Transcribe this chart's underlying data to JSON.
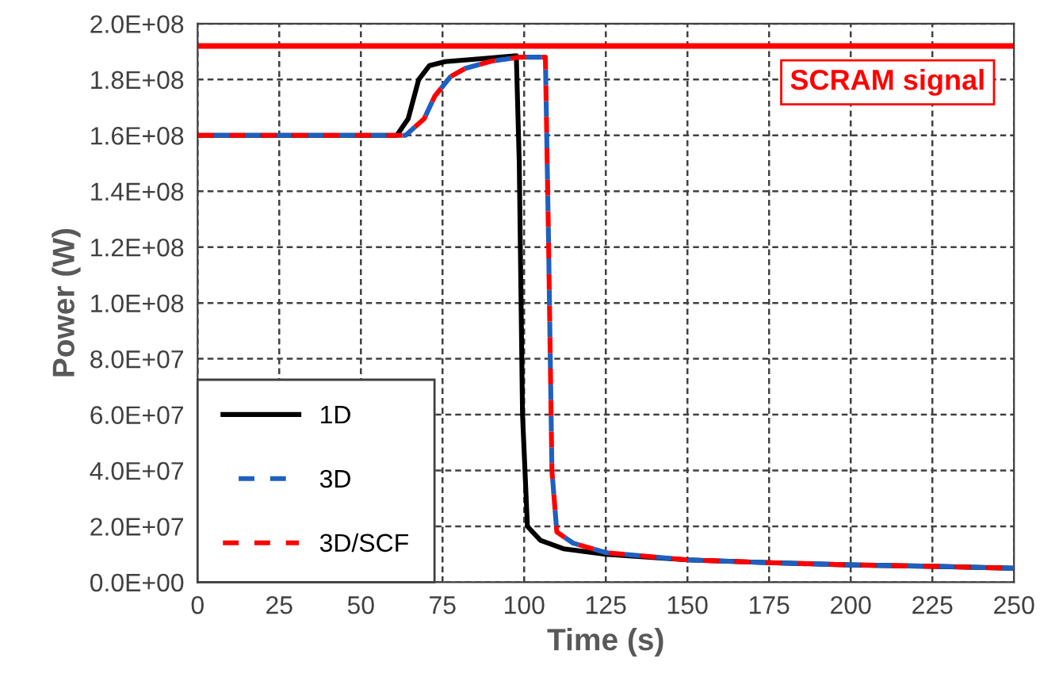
{
  "chart_data": {
    "type": "line",
    "xlabel": "Time (s)",
    "ylabel": "Power (W)",
    "xlim": [
      0,
      250
    ],
    "xticks": [
      0,
      25,
      50,
      75,
      100,
      125,
      150,
      175,
      200,
      225,
      250
    ],
    "ylim": [
      0,
      200000000
    ],
    "yticks": [
      {
        "value": 0,
        "label": "0.0E+00"
      },
      {
        "value": 20000000,
        "label": "2.0E+07"
      },
      {
        "value": 40000000,
        "label": "4.0E+07"
      },
      {
        "value": 60000000,
        "label": "6.0E+07"
      },
      {
        "value": 80000000,
        "label": "8.0E+07"
      },
      {
        "value": 100000000,
        "label": "1.0E+08"
      },
      {
        "value": 120000000,
        "label": "1.2E+08"
      },
      {
        "value": 140000000,
        "label": "1.4E+08"
      },
      {
        "value": 160000000,
        "label": "1.6E+08"
      },
      {
        "value": 180000000,
        "label": "1.8E+08"
      },
      {
        "value": 200000000,
        "label": "2.0E+08"
      }
    ],
    "grid": true,
    "legend": "bottom left",
    "ref_lines": [
      {
        "axis": "y",
        "value": 192000000,
        "label": "SCRAM signal",
        "color": "#ff0000"
      }
    ],
    "series": [
      {
        "name": "1D",
        "color": "#000000",
        "line_style": "solid",
        "x": [
          0,
          61,
          64.5,
          67.7,
          71,
          75.8,
          87,
          97.6,
          98.5,
          99.5,
          101,
          105,
          112,
          125,
          150,
          175,
          200,
          225,
          250
        ],
        "values": [
          160000000,
          160000000,
          166000000,
          180000000,
          185000000,
          186400000,
          187500000,
          188500000,
          150000000,
          60000000,
          20000000,
          15000000,
          12000000,
          10000000,
          8000000,
          7000000,
          6200000,
          5700000,
          5000000
        ]
      },
      {
        "name": "3D",
        "color": "#1f5fbf",
        "line_style": "dashed",
        "x": [
          0,
          63.7,
          69.4,
          72.6,
          77.4,
          82,
          90,
          98.4,
          106.5,
          107.5,
          108.5,
          110,
          115,
          125,
          150,
          175,
          200,
          225,
          250
        ],
        "values": [
          160000000,
          160000000,
          166000000,
          174000000,
          181000000,
          184000000,
          186600000,
          188000000,
          188000000,
          120000000,
          40000000,
          18000000,
          14000000,
          10600000,
          8000000,
          7000000,
          6200000,
          5700000,
          5000000
        ]
      },
      {
        "name": "3D/SCF",
        "color": "#ff0000",
        "line_style": "dashed",
        "x": [
          0,
          63.7,
          69.4,
          72.6,
          77.4,
          82,
          90,
          98.4,
          106.5,
          107.5,
          108.5,
          110,
          115,
          125,
          150,
          175,
          200,
          225,
          250
        ],
        "values": [
          160000000,
          160000000,
          166000000,
          174000000,
          181000000,
          184000000,
          186600000,
          188000000,
          188000000,
          120000000,
          40000000,
          18000000,
          14000000,
          10600000,
          8000000,
          7000000,
          6200000,
          5700000,
          5000000
        ]
      }
    ]
  }
}
